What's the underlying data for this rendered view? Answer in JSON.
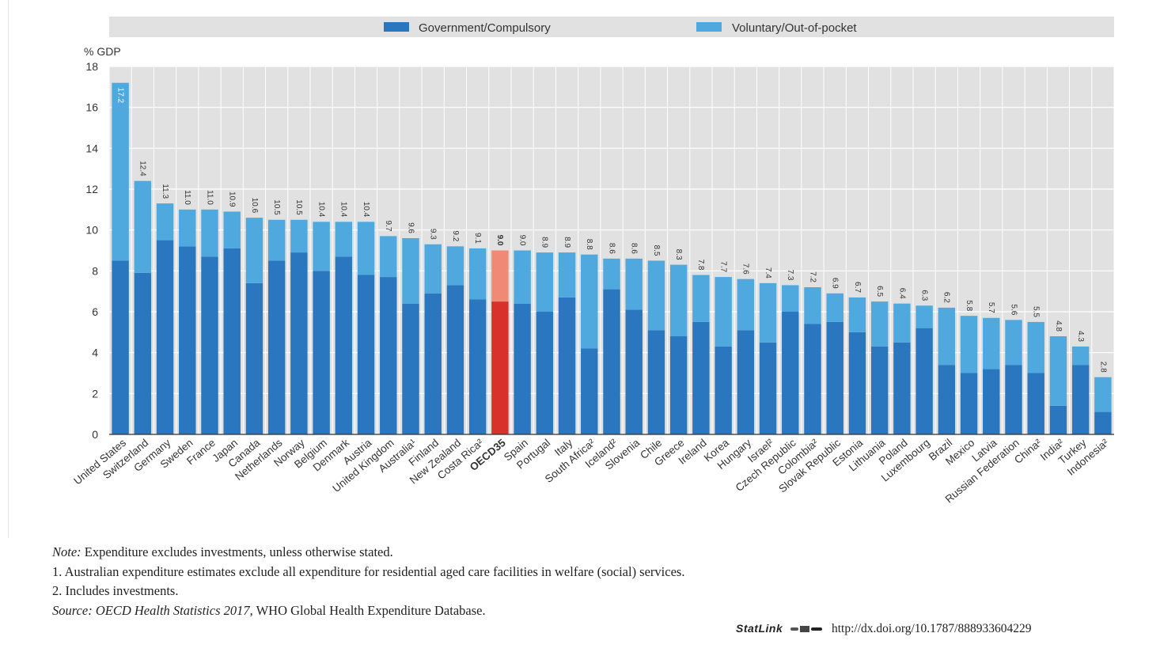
{
  "colors": {
    "government": "#2b77bf",
    "voluntary": "#4fa9df",
    "oecd_government": "#d8312b",
    "oecd_voluntary": "#f08a76",
    "plot_bg": "#e1e1e1",
    "legend_bg": "#e1e1e1"
  },
  "chart_data": {
    "type": "bar",
    "stacked": true,
    "ylabel": "% GDP",
    "ylim": [
      0,
      18
    ],
    "yticks": [
      0,
      2,
      4,
      6,
      8,
      10,
      12,
      14,
      16,
      18
    ],
    "grid": true,
    "legend_position": "top",
    "categories": [
      "United States",
      "Switzerland",
      "Germany",
      "Sweden",
      "France",
      "Japan",
      "Canada",
      "Netherlands",
      "Norway",
      "Belgium",
      "Denmark",
      "Austria",
      "United Kingdom",
      "Australia¹",
      "Finland",
      "New Zealand",
      "Costa Rica²",
      "OECD35",
      "Spain",
      "Portugal",
      "Italy",
      "South Africa²",
      "Iceland²",
      "Slovenia",
      "Chile",
      "Greece",
      "Ireland",
      "Korea",
      "Hungary",
      "Israel²",
      "Czech Republic",
      "Colombia²",
      "Slovak Republic",
      "Estonia",
      "Lithuania",
      "Poland",
      "Luxembourg",
      "Brazil",
      "Mexico",
      "Latvia",
      "Russian Federation",
      "China²",
      "India²",
      "Turkey",
      "Indonesia²"
    ],
    "highlight": "OECD35",
    "series": [
      {
        "name": "Government/Compulsory",
        "values": [
          8.5,
          7.9,
          9.5,
          9.2,
          8.7,
          9.1,
          7.4,
          8.5,
          8.9,
          8.0,
          8.7,
          7.8,
          7.7,
          6.4,
          6.9,
          7.3,
          6.6,
          6.5,
          6.4,
          6.0,
          6.7,
          4.2,
          7.1,
          6.1,
          5.1,
          4.8,
          5.5,
          4.3,
          5.1,
          4.5,
          6.0,
          5.4,
          5.5,
          5.0,
          4.3,
          4.5,
          5.2,
          3.4,
          3.0,
          3.2,
          3.4,
          3.0,
          1.4,
          3.4,
          1.1
        ]
      },
      {
        "name": "Voluntary/Out-of-pocket",
        "values": [
          8.7,
          4.5,
          1.8,
          1.8,
          2.3,
          1.8,
          3.2,
          2.0,
          1.6,
          2.4,
          1.7,
          2.6,
          2.0,
          3.2,
          2.4,
          1.9,
          2.5,
          2.5,
          2.6,
          2.9,
          2.2,
          4.6,
          1.5,
          2.5,
          3.4,
          3.5,
          2.3,
          3.4,
          2.5,
          2.9,
          1.3,
          1.8,
          1.4,
          1.7,
          2.2,
          1.9,
          1.1,
          2.8,
          2.8,
          2.5,
          2.2,
          2.5,
          3.4,
          0.9,
          1.7
        ]
      }
    ],
    "totals": [
      "17.2",
      "12.4",
      "11.3",
      "11.0",
      "11.0",
      "10.9",
      "10.6",
      "10.5",
      "10.5",
      "10.4",
      "10.4",
      "10.4",
      "9.7",
      "9.6",
      "9.3",
      "9.2",
      "9.1",
      "9.0",
      "9.0",
      "8.9",
      "8.9",
      "8.8",
      "8.6",
      "8.6",
      "8.5",
      "8.3",
      "7.8",
      "7.7",
      "7.6",
      "7.4",
      "7.3",
      "7.2",
      "6.9",
      "6.7",
      "6.5",
      "6.4",
      "6.3",
      "6.2",
      "5.8",
      "5.7",
      "5.6",
      "5.5",
      "4.8",
      "4.3",
      "2.8"
    ]
  },
  "notes": {
    "note_label": "Note:",
    "note_text": " Expenditure excludes investments, unless otherwise stated.",
    "footnote1": "1.  Australian expenditure estimates exclude all expenditure for residential aged care facilities in welfare (social) services.",
    "footnote2": "2.  Includes investments.",
    "source_label": "Source:",
    "source_italic": " OECD Health Statistics 2017",
    "source_rest": ", WHO Global Health Expenditure Database."
  },
  "statlink": {
    "label": "StatLink",
    "url": "http://dx.doi.org/10.1787/888933604229"
  }
}
